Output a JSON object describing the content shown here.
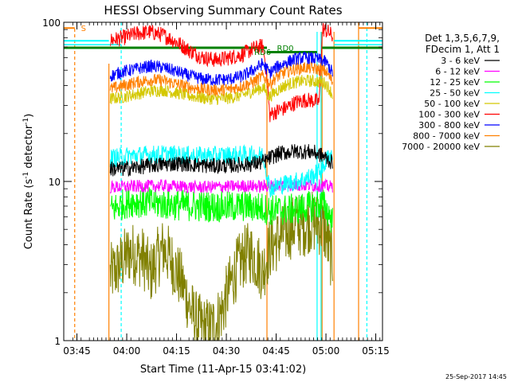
{
  "chart_data": {
    "type": "line",
    "title": "HESSI Observing Summary Count Rates",
    "xlabel": "Start Time (11-Apr-15 03:41:02)",
    "ylabel_main": "Count Rate (s",
    "ylabel_sup1": "-1",
    "ylabel_mid": " detector",
    "ylabel_sup2": "-1",
    "ylabel_end": ")",
    "y_scale": "log",
    "ylim": [
      1,
      100
    ],
    "xlim_minutes": [
      0,
      96
    ],
    "x_ticks": [
      {
        "label": "03:45",
        "min": 3.97
      },
      {
        "label": "04:00",
        "min": 18.97
      },
      {
        "label": "04:15",
        "min": 33.97
      },
      {
        "label": "04:30",
        "min": 48.97
      },
      {
        "label": "04:45",
        "min": 63.97
      },
      {
        "label": "05:00",
        "min": 78.97
      },
      {
        "label": "05:15",
        "min": 93.97
      }
    ],
    "y_ticks": [
      {
        "label": "1",
        "value": 1
      },
      {
        "label": "10",
        "value": 10
      },
      {
        "label": "100",
        "value": 100
      }
    ],
    "legend_title_1": "Det 1,3,5,6,7,9,",
    "legend_title_2": "FDecim 1, Att 1",
    "series": [
      {
        "name": "3 - 6 keV",
        "color": "#000000",
        "x": [
          14,
          18,
          25,
          30,
          35,
          40,
          45,
          50,
          55,
          58,
          60,
          62,
          65,
          70,
          75,
          78,
          80,
          81
        ],
        "y": [
          12,
          12,
          12.5,
          12.8,
          13,
          12.7,
          12.5,
          12.6,
          12.8,
          13,
          13.2,
          14,
          15,
          15.5,
          15.3,
          14.5,
          13.5,
          13
        ]
      },
      {
        "name": "6 - 12 keV",
        "color": "#ff00ff",
        "x": [
          14,
          20,
          30,
          40,
          50,
          55,
          60,
          62,
          65,
          70,
          75,
          78,
          80,
          81
        ],
        "y": [
          9.2,
          9.3,
          9.4,
          9.2,
          9.3,
          9.4,
          9.3,
          9.4,
          9.5,
          9.5,
          9.4,
          9.4,
          9.3,
          9.3
        ]
      },
      {
        "name": "12 - 25 keV",
        "color": "#00ff00",
        "x": [
          14,
          20,
          30,
          40,
          50,
          55,
          60,
          62,
          65,
          70,
          75,
          78,
          80,
          81
        ],
        "y": [
          6.6,
          7.5,
          7.2,
          7,
          6.9,
          7,
          6.8,
          6.6,
          6.6,
          6.7,
          7,
          7.3,
          6.2,
          5.6
        ]
      },
      {
        "name": "25 - 50 keV",
        "color": "#00ffff",
        "x": [
          14,
          20,
          30,
          40,
          50,
          55,
          60,
          62,
          65,
          70,
          75,
          78,
          80,
          81
        ],
        "y": [
          14,
          14.5,
          14.8,
          14.5,
          14.6,
          14.7,
          14.6,
          9,
          9.5,
          10,
          10.8,
          12,
          14.8,
          14.5
        ]
      },
      {
        "name": "50 - 100 keV",
        "color": "#d4c800",
        "x": [
          14,
          18,
          22,
          26,
          30,
          34,
          38,
          42,
          46,
          50,
          54,
          57,
          60,
          62,
          64,
          67,
          70,
          73,
          76,
          78,
          79,
          80,
          81
        ],
        "y": [
          33,
          34,
          35.5,
          37,
          37.5,
          36,
          34.5,
          33.5,
          33,
          33.5,
          35,
          37,
          39,
          34,
          37,
          40.5,
          42,
          43,
          42.5,
          42,
          41,
          38,
          35
        ]
      },
      {
        "name": "100 - 300 keV",
        "color": "#ff0000",
        "x": [
          14,
          18,
          22,
          26,
          30,
          34,
          38,
          42,
          46,
          50,
          54,
          57,
          60,
          62,
          64,
          67,
          70,
          73,
          76,
          77,
          78,
          80,
          81
        ],
        "y": [
          77,
          80,
          85,
          87,
          83,
          75,
          66,
          60,
          58,
          60,
          63,
          68,
          71,
          26,
          27.5,
          29,
          31.5,
          32.5,
          32,
          31.5,
          91,
          86,
          81
        ]
      },
      {
        "name": "300 - 800 keV",
        "color": "#0000ff",
        "x": [
          14,
          18,
          22,
          26,
          30,
          34,
          38,
          42,
          46,
          50,
          54,
          57,
          60,
          62,
          64,
          67,
          70,
          73,
          76,
          78,
          79,
          80,
          81
        ],
        "y": [
          46,
          49,
          51,
          53,
          52,
          49,
          46,
          44,
          43.5,
          44,
          46,
          50,
          55,
          48,
          52,
          56,
          59,
          60,
          59,
          57.5,
          56,
          52,
          48
        ]
      },
      {
        "name": "800 - 7000 keV",
        "color": "#ff8000",
        "x": [
          14,
          18,
          22,
          26,
          30,
          34,
          38,
          42,
          46,
          50,
          54,
          57,
          60,
          62,
          64,
          67,
          70,
          73,
          76,
          78,
          79,
          80,
          81
        ],
        "y": [
          38,
          40,
          42,
          43.5,
          43,
          41,
          39,
          38,
          37.5,
          38,
          40,
          42,
          46,
          41,
          45,
          49,
          51,
          52,
          51,
          50,
          49,
          45.5,
          42
        ]
      },
      {
        "name": "7000 - 20000 keV",
        "color": "#808000",
        "x": [
          14,
          16,
          18,
          20,
          24,
          26,
          28,
          30,
          32,
          34,
          36,
          38,
          40,
          42,
          44,
          46,
          48,
          50,
          52,
          54,
          56,
          58,
          60,
          62,
          64,
          66,
          68,
          70,
          72,
          74,
          76,
          78,
          79,
          80,
          81
        ],
        "y": [
          2.6,
          2.8,
          3.2,
          3.6,
          3.3,
          2.6,
          3.2,
          3.8,
          3.3,
          2.7,
          2.2,
          1.6,
          1.3,
          1.2,
          1.2,
          1.3,
          1.6,
          2.2,
          2.8,
          3.3,
          3.6,
          3.2,
          2.7,
          3.8,
          4.2,
          4.6,
          5,
          5.4,
          5.2,
          5.6,
          5.5,
          5.2,
          4.6,
          3.6,
          3.2
        ]
      }
    ],
    "annotations": [
      {
        "text": "S",
        "color": "#ff8000"
      },
      {
        "text": "RD0",
        "color": "#008000"
      },
      {
        "text": "RD6",
        "color": "#008000"
      }
    ],
    "grid": false,
    "legend_position": "right"
  },
  "footer": {
    "timestamp": "25-Sep-2017 14:45"
  }
}
